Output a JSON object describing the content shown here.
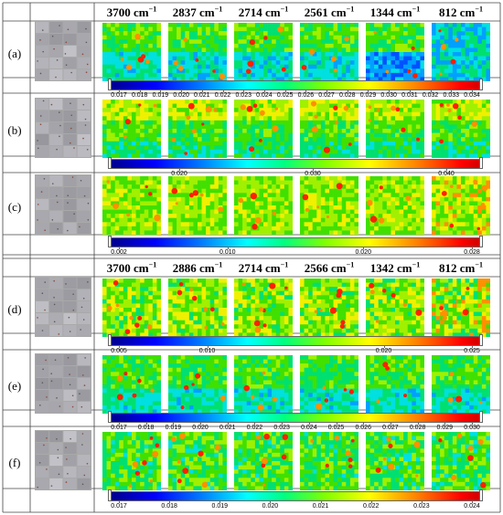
{
  "header_top": [
    "3700 cm",
    "2837 cm",
    "2714 cm",
    "2561 cm",
    "1344 cm",
    "812 cm"
  ],
  "header_bottom": [
    "3700 cm",
    "2886 cm",
    "2714 cm",
    "2566 cm",
    "1342 cm",
    "812 cm"
  ],
  "unit_sup": "−1",
  "rows": [
    {
      "label": "(a)",
      "style": 0,
      "colorbar": [
        "0.017",
        "0.018",
        "0.019",
        "0.020",
        "0.021",
        "0.022",
        "0.023",
        "0.024",
        "0.025",
        "0.026",
        "0.027",
        "0.028",
        "0.029",
        "0.030",
        "0.031",
        "0.032",
        "0.033",
        "0.034"
      ]
    },
    {
      "label": "(b)",
      "style": 1,
      "colorbar": [
        "0.020",
        "0.030",
        "0.040"
      ]
    },
    {
      "label": "(c)",
      "style": 2,
      "colorbar": [
        "0.002",
        "0.010",
        "0.020",
        "0.028"
      ]
    },
    {
      "label": "(d)",
      "style": 3,
      "colorbar": [
        "0.005",
        "0.010",
        "0.020",
        "0.025"
      ]
    },
    {
      "label": "(e)",
      "style": 4,
      "colorbar": [
        "0.017",
        "0.018",
        "0.019",
        "0.020",
        "0.021",
        "0.022",
        "0.023",
        "0.024",
        "0.025",
        "0.026",
        "0.027",
        "0.028",
        "0.029",
        "0.030"
      ]
    },
    {
      "label": "(f)",
      "style": 5,
      "colorbar": [
        "0.017",
        "0.018",
        "0.019",
        "0.020",
        "0.021",
        "0.022",
        "0.023",
        "0.024"
      ]
    }
  ],
  "colors": {
    "grid_line": "#444444",
    "photo_bg": "#a9a9a9"
  }
}
